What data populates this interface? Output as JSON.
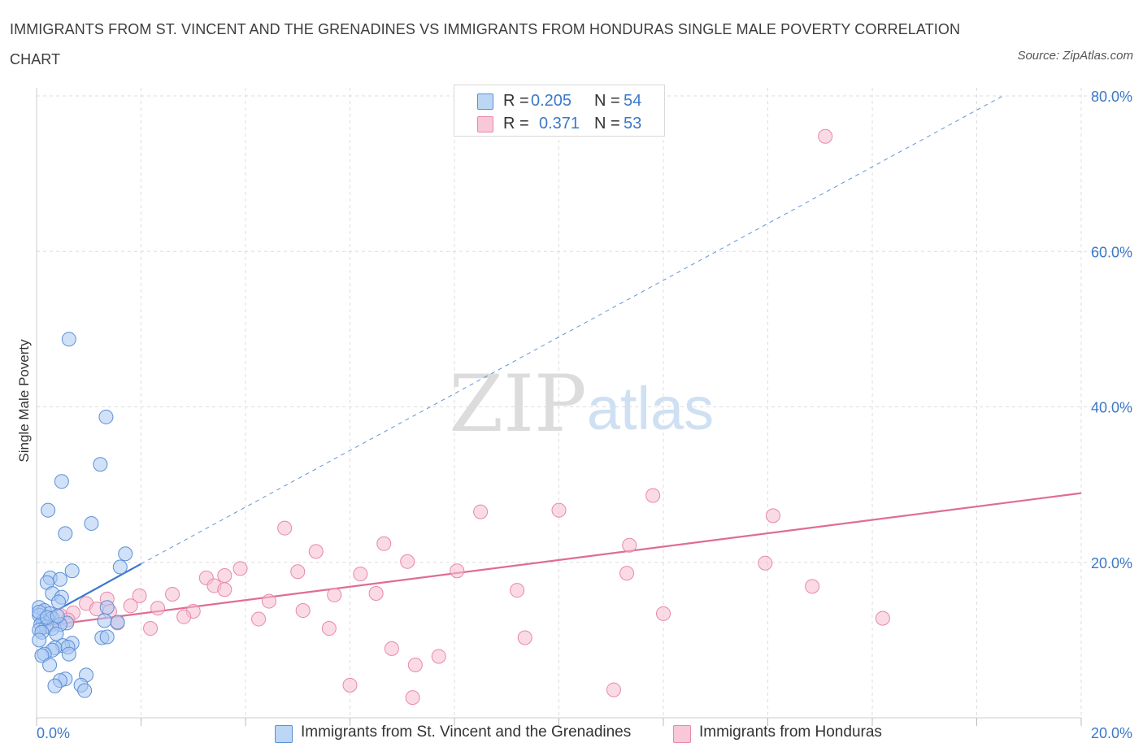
{
  "title": "IMMIGRANTS FROM ST. VINCENT AND THE GRENADINES VS IMMIGRANTS FROM HONDURAS SINGLE MALE POVERTY CORRELATION CHART",
  "source": "Source: ZipAtlas.com",
  "watermark": {
    "zip": "ZIP",
    "atlas": "atlas"
  },
  "legend": {
    "blue": {
      "r_label": "R =",
      "r_value": "0.205",
      "n_label": "N =",
      "n_value": "54"
    },
    "pink": {
      "r_label": "R =",
      "r_value": "0.371",
      "n_label": "N =",
      "n_value": "53"
    }
  },
  "colors": {
    "blue_fill": "#a9c9f2",
    "blue_stroke": "#5b8fd6",
    "blue_line": "#3a78d0",
    "pink_fill": "#f6bdd0",
    "pink_stroke": "#e888a8",
    "pink_line": "#e06c94",
    "axis_text": "#3b78c8",
    "grid": "#dddddd"
  },
  "chart_data": {
    "type": "scatter",
    "title": "IMMIGRANTS FROM ST. VINCENT AND THE GRENADINES VS IMMIGRANTS FROM HONDURAS SINGLE MALE POVERTY CORRELATION CHART",
    "xlabel": "",
    "ylabel": "Single Male Poverty",
    "xlim": [
      0,
      20
    ],
    "ylim": [
      0,
      80
    ],
    "x_tick_labels": [
      "0.0%",
      "20.0%"
    ],
    "y_ticks": [
      20,
      40,
      60,
      80
    ],
    "y_tick_labels": [
      "20.0%",
      "40.0%",
      "60.0%",
      "80.0%"
    ],
    "grid": true,
    "legend_position": "top-center",
    "series": [
      {
        "name": "Immigrants from St. Vincent and the Grenadines",
        "color": "#a9c9f2",
        "trend": {
          "x0": 0.0,
          "y0": 12.4,
          "x1": 2.0,
          "y1": 19.8,
          "dashed_to": [
            18.5,
            80.0
          ]
        },
        "points": [
          [
            0.62,
            48.7
          ],
          [
            1.33,
            38.7
          ],
          [
            1.22,
            32.6
          ],
          [
            0.48,
            30.4
          ],
          [
            0.22,
            26.7
          ],
          [
            1.05,
            25.0
          ],
          [
            0.55,
            23.7
          ],
          [
            1.7,
            21.1
          ],
          [
            1.6,
            19.4
          ],
          [
            0.68,
            18.9
          ],
          [
            0.26,
            18.0
          ],
          [
            0.45,
            17.8
          ],
          [
            0.2,
            17.4
          ],
          [
            0.3,
            16.0
          ],
          [
            0.48,
            15.5
          ],
          [
            0.42,
            14.9
          ],
          [
            1.35,
            14.2
          ],
          [
            0.05,
            14.2
          ],
          [
            0.15,
            13.8
          ],
          [
            0.25,
            13.4
          ],
          [
            0.05,
            13.2
          ],
          [
            0.3,
            12.8
          ],
          [
            0.12,
            12.4
          ],
          [
            0.58,
            12.2
          ],
          [
            0.45,
            12.0
          ],
          [
            1.55,
            12.3
          ],
          [
            1.3,
            12.5
          ],
          [
            0.08,
            12.0
          ],
          [
            0.18,
            11.7
          ],
          [
            0.3,
            11.5
          ],
          [
            0.05,
            11.3
          ],
          [
            0.1,
            11.0
          ],
          [
            0.38,
            10.8
          ],
          [
            1.25,
            10.3
          ],
          [
            1.35,
            10.4
          ],
          [
            0.05,
            10.0
          ],
          [
            0.68,
            9.6
          ],
          [
            0.5,
            9.3
          ],
          [
            0.6,
            9.1
          ],
          [
            0.35,
            9.0
          ],
          [
            0.3,
            8.7
          ],
          [
            0.15,
            8.2
          ],
          [
            0.62,
            8.2
          ],
          [
            0.1,
            8.0
          ],
          [
            0.25,
            6.8
          ],
          [
            0.95,
            5.5
          ],
          [
            0.55,
            5.0
          ],
          [
            0.45,
            4.8
          ],
          [
            0.35,
            4.1
          ],
          [
            0.85,
            4.2
          ],
          [
            0.05,
            13.6
          ],
          [
            0.2,
            12.9
          ],
          [
            0.4,
            13.1
          ],
          [
            0.92,
            3.5
          ]
        ]
      },
      {
        "name": "Immigrants from Honduras",
        "color": "#f6bdd0",
        "trend": {
          "x0": 0.0,
          "y0": 11.7,
          "x1": 20.0,
          "y1": 28.9
        },
        "points": [
          [
            15.1,
            74.8
          ],
          [
            11.8,
            28.6
          ],
          [
            14.1,
            26.0
          ],
          [
            10.0,
            26.7
          ],
          [
            8.5,
            26.5
          ],
          [
            4.75,
            24.4
          ],
          [
            6.65,
            22.4
          ],
          [
            11.35,
            22.2
          ],
          [
            5.35,
            21.4
          ],
          [
            13.95,
            19.9
          ],
          [
            7.1,
            20.1
          ],
          [
            3.9,
            19.2
          ],
          [
            8.05,
            18.9
          ],
          [
            5.0,
            18.8
          ],
          [
            6.2,
            18.5
          ],
          [
            3.6,
            18.3
          ],
          [
            3.25,
            18.0
          ],
          [
            11.3,
            18.6
          ],
          [
            6.5,
            16.0
          ],
          [
            3.4,
            17.0
          ],
          [
            14.85,
            16.9
          ],
          [
            2.6,
            15.9
          ],
          [
            9.2,
            16.4
          ],
          [
            3.6,
            16.5
          ],
          [
            5.7,
            15.8
          ],
          [
            4.45,
            15.0
          ],
          [
            1.97,
            15.7
          ],
          [
            1.35,
            15.3
          ],
          [
            0.95,
            14.7
          ],
          [
            1.8,
            14.4
          ],
          [
            1.15,
            14.0
          ],
          [
            2.32,
            14.1
          ],
          [
            5.1,
            13.8
          ],
          [
            0.7,
            13.5
          ],
          [
            1.4,
            13.7
          ],
          [
            3.0,
            13.7
          ],
          [
            12.0,
            13.4
          ],
          [
            0.45,
            13.2
          ],
          [
            2.82,
            13.0
          ],
          [
            16.2,
            12.8
          ],
          [
            4.25,
            12.7
          ],
          [
            1.55,
            12.2
          ],
          [
            0.6,
            12.6
          ],
          [
            5.6,
            11.5
          ],
          [
            2.18,
            11.5
          ],
          [
            9.35,
            10.3
          ],
          [
            6.8,
            8.9
          ],
          [
            7.7,
            7.9
          ],
          [
            7.25,
            6.8
          ],
          [
            6.0,
            4.2
          ],
          [
            11.05,
            3.6
          ],
          [
            7.2,
            2.6
          ],
          [
            0.3,
            12.0
          ]
        ]
      }
    ]
  }
}
